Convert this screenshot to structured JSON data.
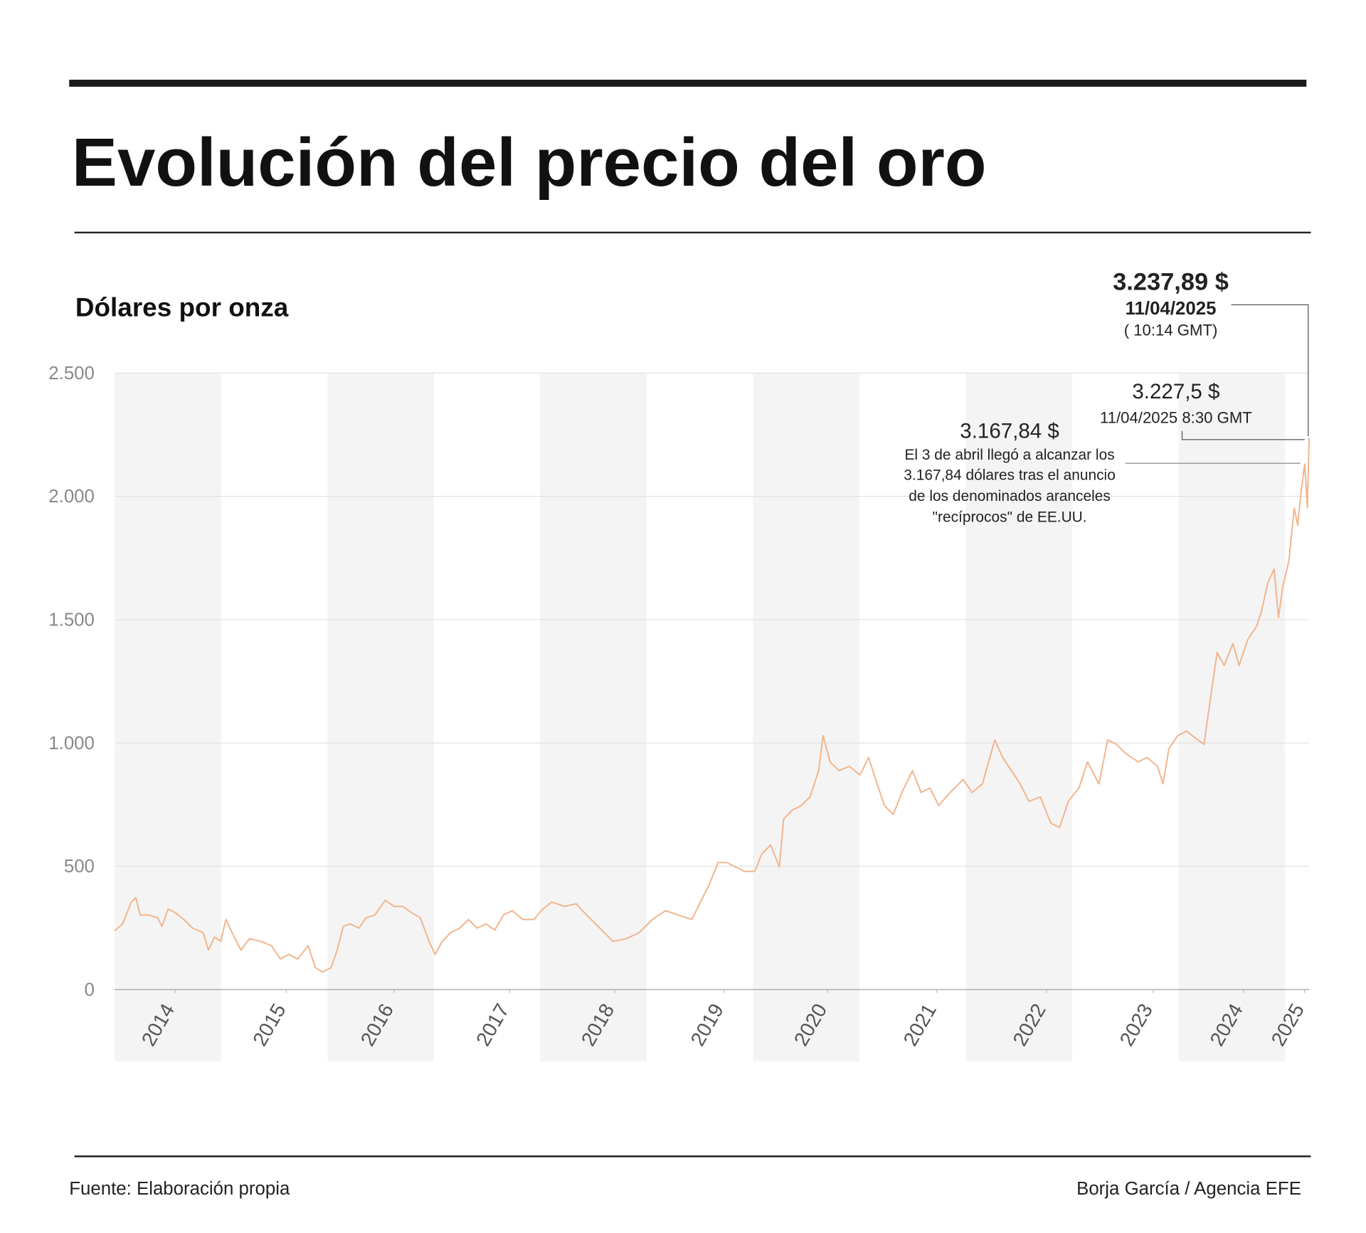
{
  "chart_data": {
    "type": "line",
    "title": "Evolución del precio del oro",
    "subtitle": "Dólares por onza",
    "annotations": [
      "3.237,89 $",
      "11/04/2025",
      "( 10:14 GMT)",
      "3.227,5 $",
      "11/04/2025 8:30 GMT",
      "3.167,84 $",
      "El 3 de abril llegó a alcanzar los",
      "3.167,84 dólares tras el anuncio",
      "de los denominados aranceles",
      "\"recíprocos\" de EE.UU."
    ],
    "source": "Fuente: Elaboración propia",
    "credit": "Borja García / Agencia EFE",
    "color": "#f2b48c",
    "grid": true,
    "xlim": [
      2013.6,
      2024.826
    ],
    "xticks": [
      {
        "value": 2014.168,
        "label": "2014"
      },
      {
        "value": 2015.213,
        "label": "2015"
      },
      {
        "value": 2016.226,
        "label": "2016"
      },
      {
        "value": 2017.312,
        "label": "2017"
      },
      {
        "value": 2018.3,
        "label": "2018"
      },
      {
        "value": 2019.328,
        "label": "2019"
      },
      {
        "value": 2020.3,
        "label": "2020"
      },
      {
        "value": 2021.328,
        "label": "2021"
      },
      {
        "value": 2022.357,
        "label": "2022"
      },
      {
        "value": 2023.361,
        "label": "2023"
      },
      {
        "value": 2024.209,
        "label": "2024"
      },
      {
        "value": 2024.785,
        "label": "2025"
      }
    ],
    "ylim": [
      0,
      2500
    ],
    "yticks": [
      0,
      500,
      {
        "value": 1000,
        "label": "1.000"
      },
      {
        "value": 1500,
        "label": "1.500"
      },
      {
        "value": 2000,
        "label": "2.000"
      },
      {
        "value": 2500,
        "label": "2.500"
      }
    ],
    "x": [
      2013.6,
      2013.674,
      2013.756,
      2013.798,
      2013.839,
      2013.921,
      2014.003,
      2014.044,
      2014.102,
      2014.168,
      2014.25,
      2014.333,
      2014.431,
      2014.481,
      2014.538,
      2014.596,
      2014.645,
      2014.703,
      2014.785,
      2014.867,
      2014.974,
      2015.073,
      2015.156,
      2015.238,
      2015.32,
      2015.419,
      2015.485,
      2015.551,
      2015.633,
      2015.691,
      2015.748,
      2015.814,
      2015.896,
      2015.962,
      2016.044,
      2016.143,
      2016.226,
      2016.308,
      2016.39,
      2016.472,
      2016.555,
      2016.612,
      2016.678,
      2016.76,
      2016.843,
      2016.925,
      2017.007,
      2017.09,
      2017.172,
      2017.254,
      2017.337,
      2017.435,
      2017.542,
      2017.608,
      2017.707,
      2017.83,
      2017.937,
      2018.036,
      2018.16,
      2018.283,
      2018.407,
      2018.53,
      2018.653,
      2018.777,
      2018.9,
      2019.024,
      2019.106,
      2019.188,
      2019.271,
      2019.353,
      2019.435,
      2019.518,
      2019.616,
      2019.682,
      2019.765,
      2019.847,
      2019.888,
      2019.97,
      2020.053,
      2020.135,
      2020.217,
      2020.258,
      2020.324,
      2020.407,
      2020.505,
      2020.604,
      2020.686,
      2020.752,
      2020.835,
      2020.917,
      2020.999,
      2021.098,
      2021.18,
      2021.263,
      2021.345,
      2021.452,
      2021.575,
      2021.658,
      2021.756,
      2021.872,
      2021.946,
      2022.028,
      2022.11,
      2022.193,
      2022.3,
      2022.398,
      2022.481,
      2022.563,
      2022.662,
      2022.744,
      2022.851,
      2022.933,
      2023.016,
      2023.098,
      2023.221,
      2023.304,
      2023.402,
      2023.452,
      2023.509,
      2023.592,
      2023.674,
      2023.781,
      2023.839,
      2023.896,
      2023.962,
      2024.028,
      2024.11,
      2024.168,
      2024.25,
      2024.333,
      2024.374,
      2024.44,
      2024.497,
      2024.538,
      2024.579,
      2024.637,
      2024.686,
      2024.719,
      2024.752,
      2024.785,
      2024.81,
      2024.826
    ],
    "values": [
      238,
      266,
      355,
      373,
      302,
      302,
      291,
      256,
      327,
      312,
      284,
      249,
      231,
      160,
      213,
      195,
      284,
      231,
      160,
      206,
      195,
      178,
      124,
      142,
      124,
      178,
      89,
      71,
      89,
      160,
      256,
      266,
      249,
      291,
      302,
      362,
      337,
      337,
      312,
      291,
      195,
      142,
      195,
      231,
      249,
      284,
      249,
      266,
      241,
      302,
      320,
      284,
      284,
      320,
      355,
      337,
      348,
      302,
      249,
      195,
      206,
      231,
      284,
      320,
      302,
      284,
      355,
      426,
      515,
      515,
      497,
      479,
      479,
      550,
      586,
      497,
      692,
      728,
      746,
      781,
      888,
      1030,
      923,
      888,
      905,
      870,
      941,
      852,
      746,
      710,
      799,
      888,
      799,
      817,
      746,
      799,
      852,
      799,
      834,
      1012,
      941,
      888,
      834,
      763,
      781,
      675,
      657,
      763,
      817,
      923,
      834,
      1012,
      994,
      959,
      923,
      941,
      905,
      834,
      977,
      1030,
      1048,
      1012,
      994,
      1172,
      1367,
      1314,
      1403,
      1314,
      1420,
      1474,
      1527,
      1651,
      1705,
      1509,
      1634,
      1740,
      1953,
      1882,
      2024,
      2131,
      1953,
      2237
    ]
  }
}
